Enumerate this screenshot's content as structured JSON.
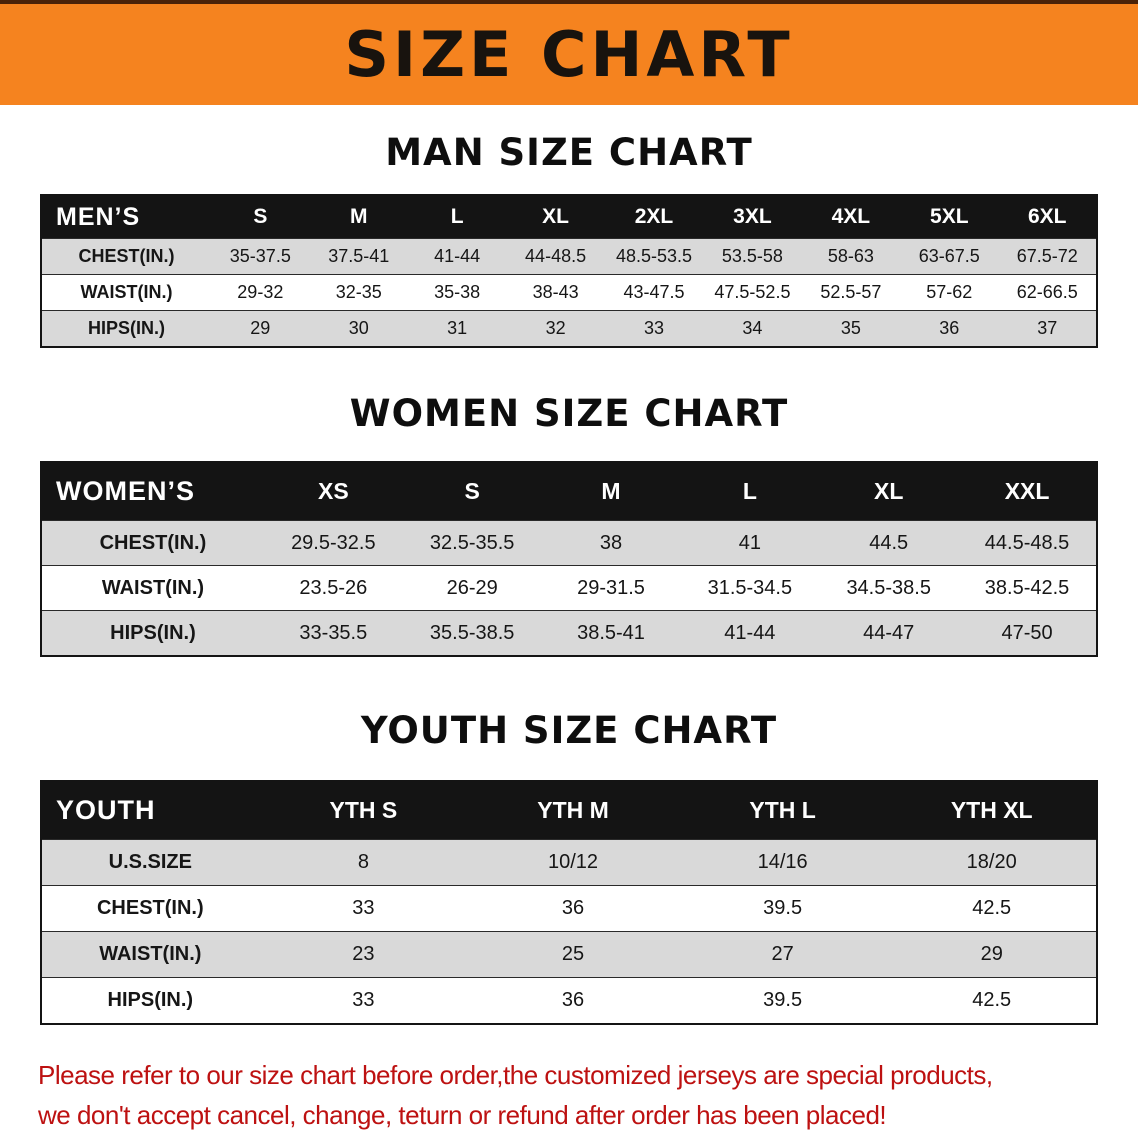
{
  "banner": {
    "title": "SIZE CHART",
    "bg_color": "#f5831f",
    "text_color": "#18130e"
  },
  "sections": [
    {
      "heading": "MAN SIZE CHART",
      "table": {
        "header": [
          "MEN’S",
          "S",
          "M",
          "L",
          "XL",
          "2XL",
          "3XL",
          "4XL",
          "5XL",
          "6XL"
        ],
        "rows": [
          [
            "CHEST(IN.)",
            "35-37.5",
            "37.5-41",
            "41-44",
            "44-48.5",
            "48.5-53.5",
            "53.5-58",
            "58-63",
            "63-67.5",
            "67.5-72"
          ],
          [
            "WAIST(IN.)",
            "29-32",
            "32-35",
            "35-38",
            "38-43",
            "43-47.5",
            "47.5-52.5",
            "52.5-57",
            "57-62",
            "62-66.5"
          ],
          [
            "HIPS(IN.)",
            "29",
            "30",
            "31",
            "32",
            "33",
            "34",
            "35",
            "36",
            "37"
          ]
        ]
      }
    },
    {
      "heading": "WOMEN SIZE CHART",
      "table": {
        "header": [
          "WOMEN’S",
          "XS",
          "S",
          "M",
          "L",
          "XL",
          "XXL"
        ],
        "rows": [
          [
            "CHEST(IN.)",
            "29.5-32.5",
            "32.5-35.5",
            "38",
            "41",
            "44.5",
            "44.5-48.5"
          ],
          [
            "WAIST(IN.)",
            "23.5-26",
            "26-29",
            "29-31.5",
            "31.5-34.5",
            "34.5-38.5",
            "38.5-42.5"
          ],
          [
            "HIPS(IN.)",
            "33-35.5",
            "35.5-38.5",
            "38.5-41",
            "41-44",
            "44-47",
            "47-50"
          ]
        ]
      }
    },
    {
      "heading": "YOUTH SIZE CHART",
      "table": {
        "header": [
          "YOUTH",
          "YTH S",
          "YTH M",
          "YTH L",
          "YTH XL"
        ],
        "rows": [
          [
            "U.S.SIZE",
            "8",
            "10/12",
            "14/16",
            "18/20"
          ],
          [
            "CHEST(IN.)",
            "33",
            "36",
            "39.5",
            "42.5"
          ],
          [
            "WAIST(IN.)",
            "23",
            "25",
            "27",
            "29"
          ],
          [
            "HIPS(IN.)",
            "33",
            "36",
            "39.5",
            "42.5"
          ]
        ]
      }
    }
  ],
  "disclaimer": {
    "lines": [
      "Please refer to our size chart before order,the customized jerseys are special products,",
      "we don't accept cancel, change, teturn or refund after order has been placed!"
    ],
    "text_color": "#bd1111"
  }
}
